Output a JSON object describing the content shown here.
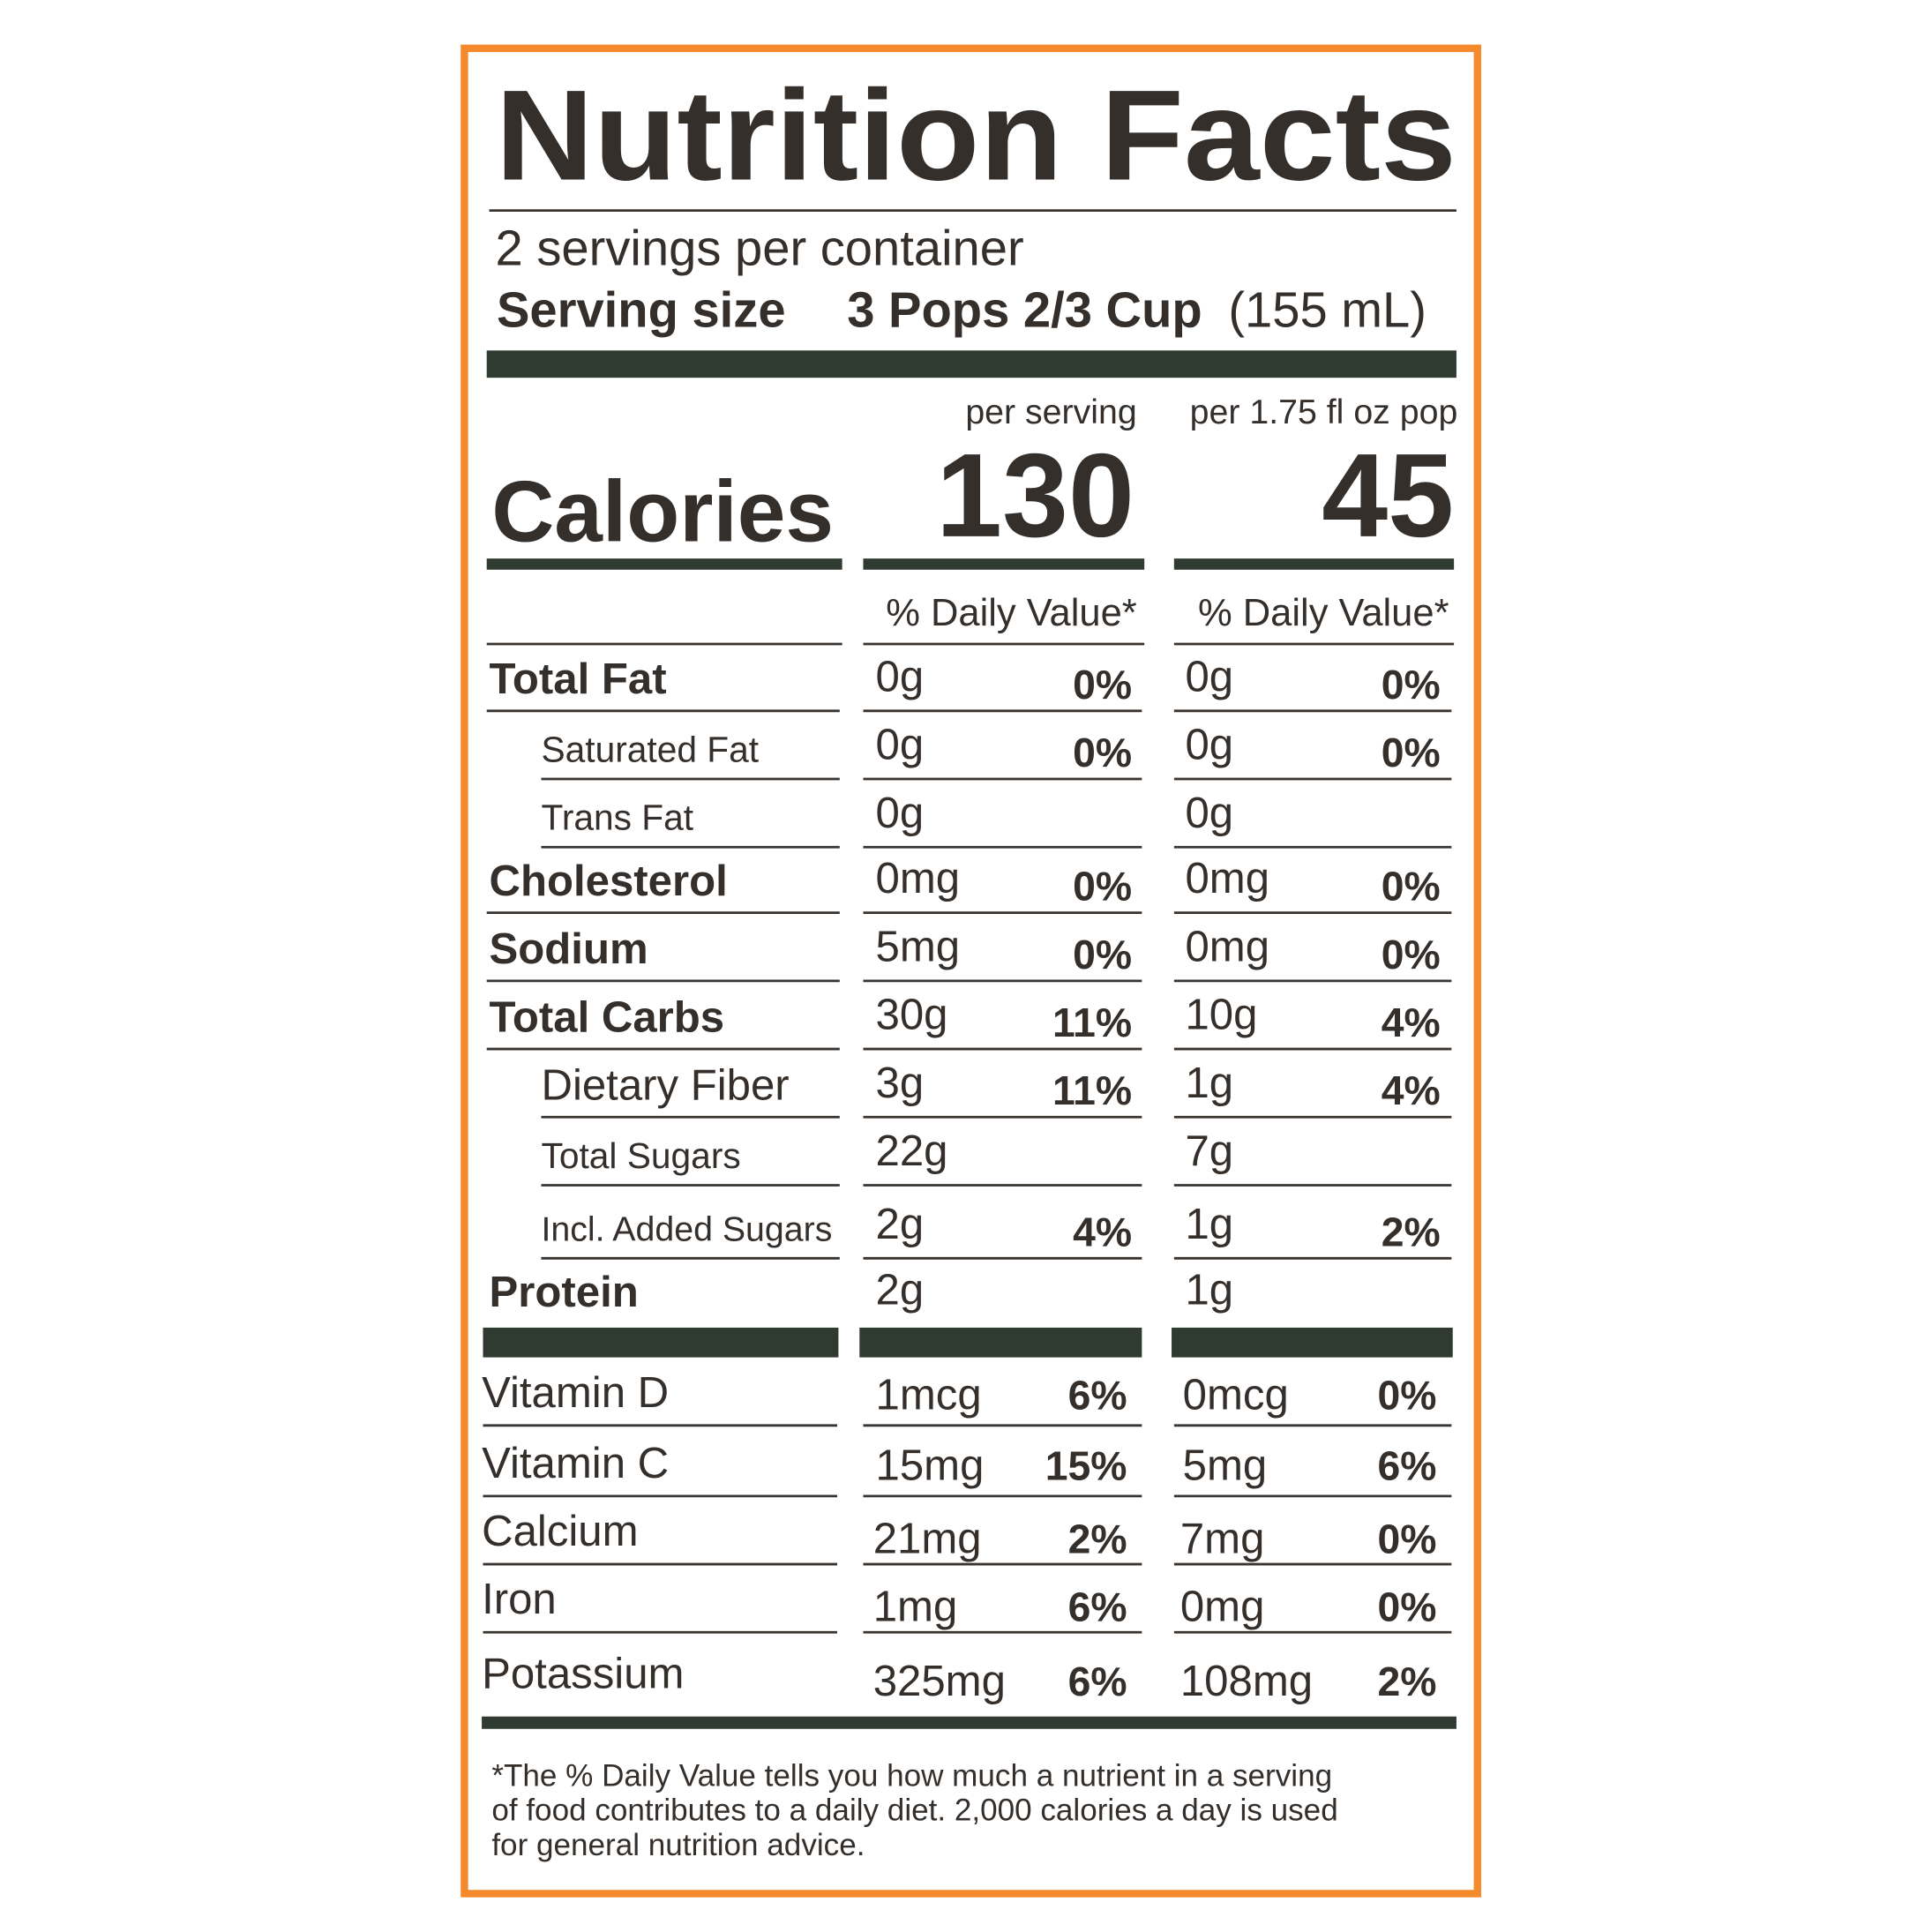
{
  "title": "Nutrition Facts",
  "servings": "2 servings per container",
  "serving_size": {
    "label": "Serving size",
    "value": "3 Pops 2/3 Cup",
    "metric": "(155 mL)"
  },
  "columns": [
    "per serving",
    "per 1.75 fl oz pop"
  ],
  "calories": {
    "label": "Calories",
    "values": [
      "130",
      "45"
    ]
  },
  "dv_header": [
    "% Daily Value*",
    "% Daily Value*"
  ],
  "nutrients": [
    {
      "name": "Total Fat",
      "amounts": [
        "0g",
        "0g"
      ],
      "dv": [
        "0%",
        "0%"
      ]
    },
    {
      "name": "Saturated Fat",
      "amounts": [
        "0g",
        "0g"
      ],
      "dv": [
        "0%",
        "0%"
      ]
    },
    {
      "name": "Trans  Fat",
      "amounts": [
        "0g",
        "0g"
      ]
    },
    {
      "name": "Cholesterol",
      "amounts": [
        "0mg",
        "0mg"
      ],
      "dv": [
        "0%",
        "0%"
      ]
    },
    {
      "name": "Sodium",
      "amounts": [
        "5mg",
        "0mg"
      ],
      "dv": [
        "0%",
        "0%"
      ]
    },
    {
      "name": "Total Carbs",
      "amounts": [
        "30g",
        "10g"
      ],
      "dv": [
        "11%",
        "4%"
      ]
    },
    {
      "name": "Dietary Fiber",
      "amounts": [
        "3g",
        "1g"
      ],
      "dv": [
        "11%",
        "4%"
      ]
    },
    {
      "name": "Total Sugars",
      "amounts": [
        "22g",
        "7g"
      ]
    },
    {
      "name": "Incl. Added Sugars",
      "amounts": [
        "2g",
        "1g"
      ],
      "dv": [
        "4%",
        "2%"
      ]
    },
    {
      "name": "Protein",
      "amounts": [
        "2g",
        "1g"
      ]
    }
  ],
  "vitamins": [
    {
      "name": "Vitamin D",
      "amounts": [
        "1mcg",
        "0mcg"
      ],
      "dv": [
        "6%",
        "0%"
      ]
    },
    {
      "name": "Vitamin C",
      "amounts": [
        "15mg",
        "5mg"
      ],
      "dv": [
        "15%",
        "6%"
      ]
    },
    {
      "name": "Calcium",
      "amounts": [
        "21mg",
        "7mg"
      ],
      "dv": [
        "2%",
        "0%"
      ]
    },
    {
      "name": "Iron",
      "amounts": [
        "1mg",
        "0mg"
      ],
      "dv": [
        "6%",
        "0%"
      ]
    },
    {
      "name": "Potassium",
      "amounts": [
        "325mg",
        "108mg"
      ],
      "dv": [
        "6%",
        "2%"
      ]
    }
  ],
  "footnote": [
    "*The % Daily Value tells you how much a nutrient in a serving",
    "of food contributes to a daily diet. 2,000 calories a day is used",
    "for general nutrition advice."
  ]
}
